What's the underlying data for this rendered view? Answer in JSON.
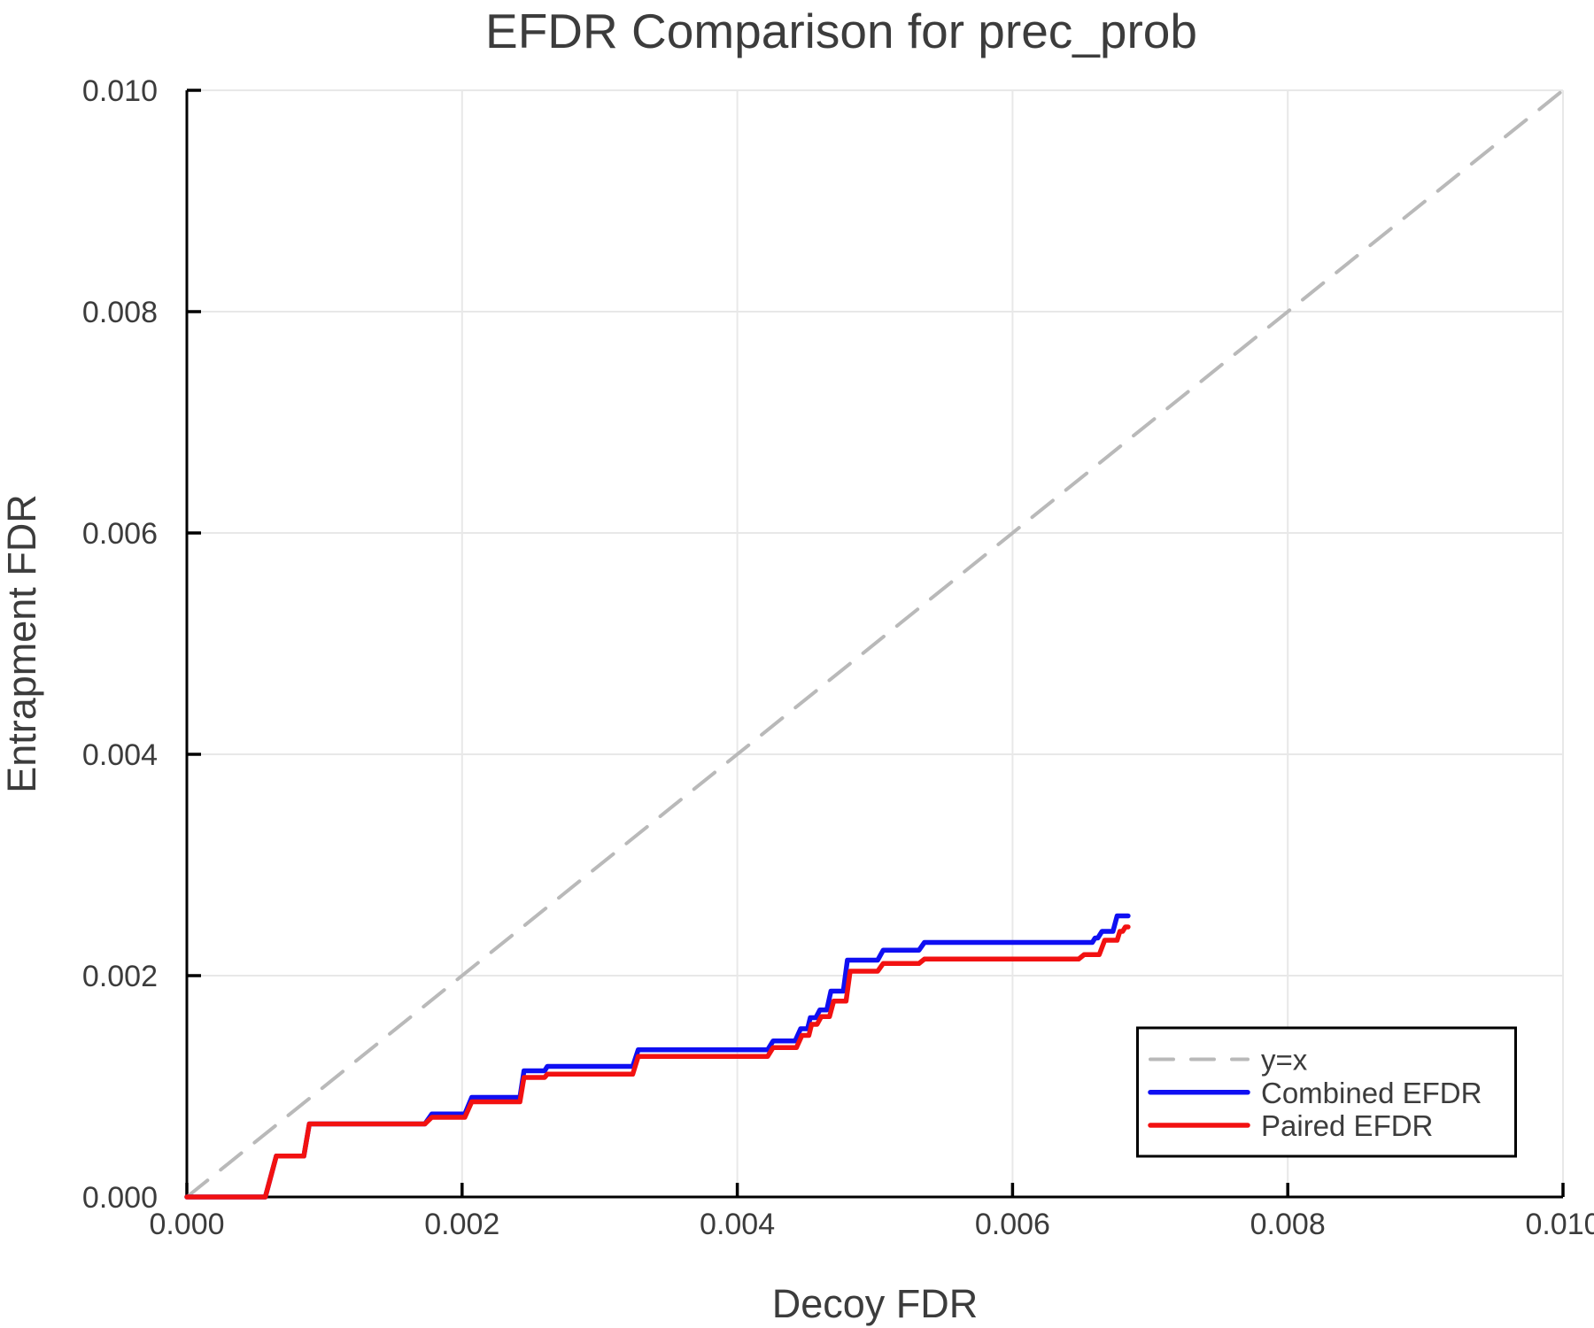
{
  "figure": {
    "background_color": "#ffffff",
    "text_color": "#3c3c3c",
    "axis_color": "#000000",
    "grid_color": "#e8e8e8"
  },
  "chart_data": {
    "type": "line",
    "title": "EFDR Comparison for prec_prob",
    "xlabel": "Decoy FDR",
    "ylabel": "Entrapment FDR",
    "xlim": [
      0,
      0.01
    ],
    "ylim": [
      0,
      0.01
    ],
    "xticks": [
      0,
      0.002,
      0.004,
      0.006,
      0.008,
      0.01
    ],
    "yticks": [
      0,
      0.002,
      0.004,
      0.006,
      0.008,
      0.01
    ],
    "tick_label_format": "3-decimals",
    "grid": true,
    "legend_position": "lower right",
    "series": [
      {
        "key": "identity-line",
        "name": "y=x",
        "color": "#b9b9b9",
        "dash": [
          30,
          19
        ],
        "width": 4,
        "points": [
          [
            0,
            0
          ],
          [
            0.01,
            0.01
          ]
        ]
      },
      {
        "key": "combined-efdr-line",
        "name": "Combined EFDR",
        "color": "#0f0ff2",
        "dash": null,
        "width": 5.5,
        "points": [
          [
            0.0,
            0.0
          ],
          [
            0.00057,
            0.0
          ],
          [
            0.00065,
            0.00037
          ],
          [
            0.00085,
            0.00037
          ],
          [
            0.00089,
            0.00066
          ],
          [
            0.00173,
            0.00066
          ],
          [
            0.00178,
            0.00075
          ],
          [
            0.00202,
            0.00075
          ],
          [
            0.00207,
            0.0009
          ],
          [
            0.00242,
            0.0009
          ],
          [
            0.00245,
            0.00114
          ],
          [
            0.0026,
            0.00114
          ],
          [
            0.00262,
            0.00118
          ],
          [
            0.00324,
            0.00118
          ],
          [
            0.00328,
            0.00133
          ],
          [
            0.00422,
            0.00133
          ],
          [
            0.00426,
            0.00141
          ],
          [
            0.00442,
            0.00141
          ],
          [
            0.00446,
            0.00152
          ],
          [
            0.00451,
            0.00152
          ],
          [
            0.00453,
            0.00162
          ],
          [
            0.00457,
            0.00162
          ],
          [
            0.0046,
            0.00169
          ],
          [
            0.00465,
            0.00169
          ],
          [
            0.00468,
            0.00186
          ],
          [
            0.00477,
            0.00186
          ],
          [
            0.0048,
            0.00214
          ],
          [
            0.00502,
            0.00214
          ],
          [
            0.00506,
            0.00223
          ],
          [
            0.00532,
            0.00223
          ],
          [
            0.00536,
            0.0023
          ],
          [
            0.00658,
            0.0023
          ],
          [
            0.0066,
            0.00234
          ],
          [
            0.00662,
            0.00234
          ],
          [
            0.00665,
            0.0024
          ],
          [
            0.00673,
            0.0024
          ],
          [
            0.00676,
            0.00254
          ],
          [
            0.00684,
            0.00254
          ]
        ]
      },
      {
        "key": "paired-efdr-line",
        "name": "Paired EFDR",
        "color": "#f21111",
        "dash": null,
        "width": 5.5,
        "points": [
          [
            0.0,
            0.0
          ],
          [
            0.00057,
            0.0
          ],
          [
            0.00065,
            0.00037
          ],
          [
            0.00085,
            0.00037
          ],
          [
            0.00089,
            0.00066
          ],
          [
            0.00173,
            0.00066
          ],
          [
            0.00178,
            0.00072
          ],
          [
            0.00202,
            0.00072
          ],
          [
            0.00207,
            0.00086
          ],
          [
            0.00242,
            0.00086
          ],
          [
            0.00245,
            0.00108
          ],
          [
            0.0026,
            0.00108
          ],
          [
            0.00262,
            0.00111
          ],
          [
            0.00324,
            0.00111
          ],
          [
            0.00328,
            0.00127
          ],
          [
            0.00422,
            0.00127
          ],
          [
            0.00426,
            0.00135
          ],
          [
            0.00443,
            0.00135
          ],
          [
            0.00447,
            0.00146
          ],
          [
            0.00452,
            0.00146
          ],
          [
            0.00454,
            0.00156
          ],
          [
            0.00458,
            0.00156
          ],
          [
            0.00461,
            0.00163
          ],
          [
            0.00467,
            0.00163
          ],
          [
            0.0047,
            0.00177
          ],
          [
            0.00479,
            0.00177
          ],
          [
            0.00482,
            0.00204
          ],
          [
            0.00502,
            0.00204
          ],
          [
            0.00506,
            0.00211
          ],
          [
            0.00532,
            0.00211
          ],
          [
            0.00536,
            0.00215
          ],
          [
            0.00648,
            0.00215
          ],
          [
            0.00652,
            0.00219
          ],
          [
            0.00663,
            0.00219
          ],
          [
            0.00667,
            0.00232
          ],
          [
            0.00676,
            0.00232
          ],
          [
            0.00678,
            0.0024
          ],
          [
            0.0068,
            0.0024
          ],
          [
            0.00682,
            0.00244
          ],
          [
            0.00684,
            0.00244
          ]
        ]
      }
    ]
  }
}
